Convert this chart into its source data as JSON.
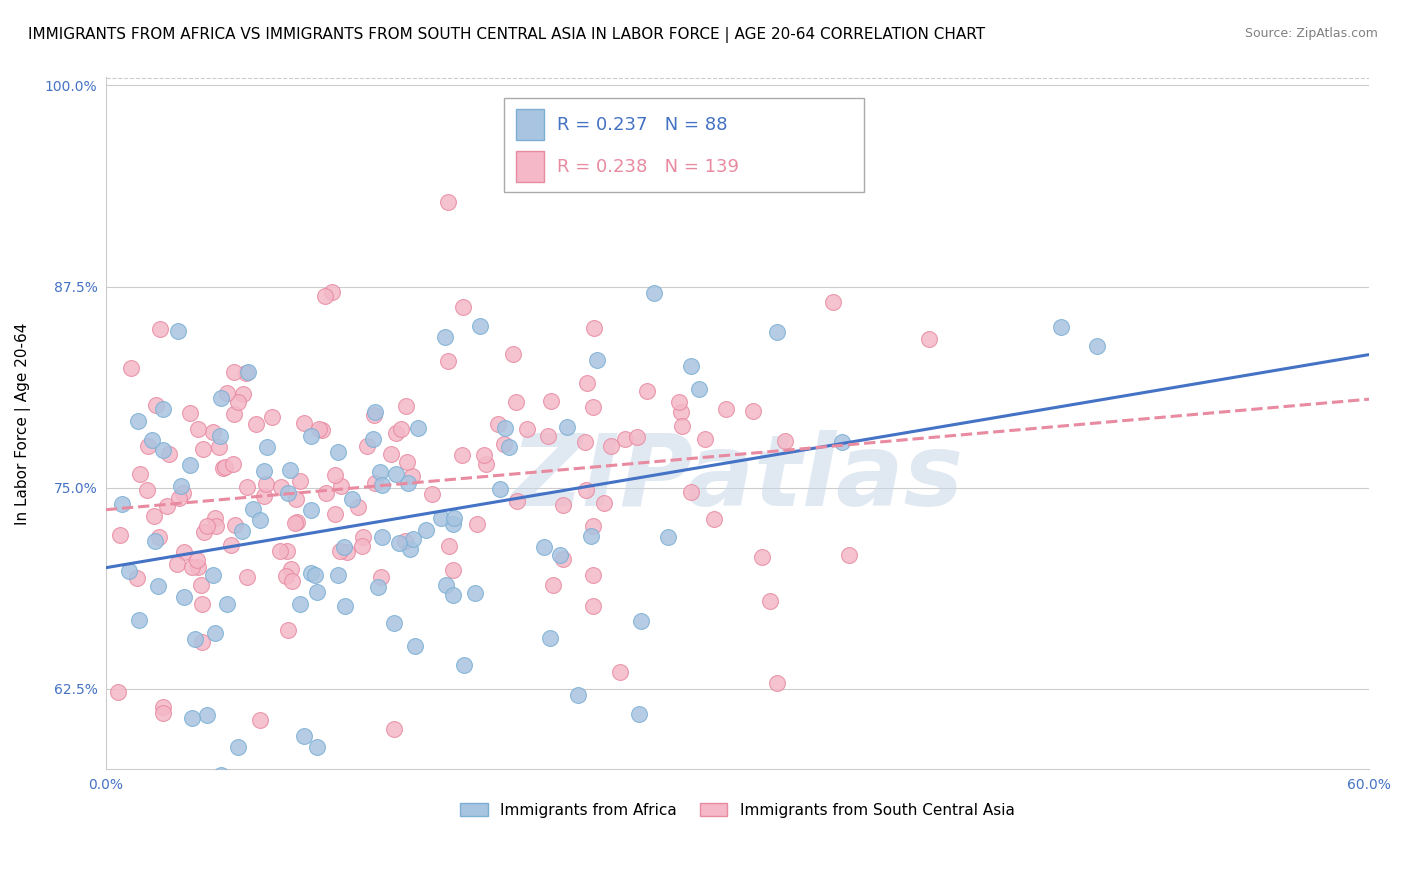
{
  "title": "IMMIGRANTS FROM AFRICA VS IMMIGRANTS FROM SOUTH CENTRAL ASIA IN LABOR FORCE | AGE 20-64 CORRELATION CHART",
  "source": "Source: ZipAtlas.com",
  "xlabel": "",
  "ylabel": "In Labor Force | Age 20-64",
  "xlim": [
    0.0,
    0.6
  ],
  "ylim": [
    0.575,
    1.005
  ],
  "yticks": [
    0.625,
    0.75,
    0.875,
    1.0
  ],
  "ytick_labels": [
    "62.5%",
    "75.0%",
    "87.5%",
    "100.0%"
  ],
  "xticks": [
    0.0,
    0.1,
    0.2,
    0.3,
    0.4,
    0.5,
    0.6
  ],
  "xtick_labels": [
    "0.0%",
    "",
    "",
    "",
    "",
    "",
    "60.0%"
  ],
  "series_africa": {
    "name": "Immigrants from Africa",
    "R": 0.237,
    "N": 88,
    "color": "#a8c4e0",
    "edge_color": "#7bafd4",
    "line_color": "#4472c4",
    "line_style": "solid"
  },
  "series_asia": {
    "name": "Immigrants from South Central Asia",
    "R": 0.238,
    "N": 139,
    "color": "#f4b8c8",
    "edge_color": "#e88aa0",
    "line_color": "#e88aa0",
    "line_style": "dashed"
  },
  "watermark": "ZIPatlas",
  "watermark_color": "#c8d8e8",
  "background_color": "#ffffff",
  "grid_color": "#cccccc",
  "title_fontsize": 11,
  "axis_label_fontsize": 11,
  "tick_fontsize": 10,
  "legend_fontsize": 13,
  "seed_africa": 42,
  "seed_asia": 99
}
